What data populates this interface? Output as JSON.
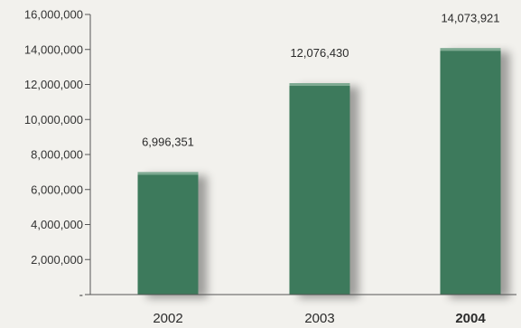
{
  "chart_data": {
    "type": "bar",
    "categories": [
      "2002",
      "2003",
      "2004"
    ],
    "values": [
      6996351,
      12076430,
      14073921
    ],
    "value_labels": [
      "6,996,351",
      "12,076,430",
      "14,073,921"
    ],
    "highlight_category": "2004",
    "title": "",
    "xlabel": "",
    "ylabel": "",
    "ylim": [
      0,
      16000000
    ],
    "yticks": [
      0,
      2000000,
      4000000,
      6000000,
      8000000,
      10000000,
      12000000,
      14000000,
      16000000
    ],
    "ytick_labels": [
      "-",
      "2,000,000",
      "4,000,000",
      "6,000,000",
      "8,000,000",
      "10,000,000",
      "12,000,000",
      "14,000,000",
      "16,000,000"
    ],
    "grid": false,
    "legend": "none"
  },
  "colors": {
    "bar": "#3d7a5b",
    "bar_top": "#8fb7a0",
    "highlight_label": "#3d7a5b",
    "axis": "#555555",
    "background": "#f2f1ed"
  }
}
